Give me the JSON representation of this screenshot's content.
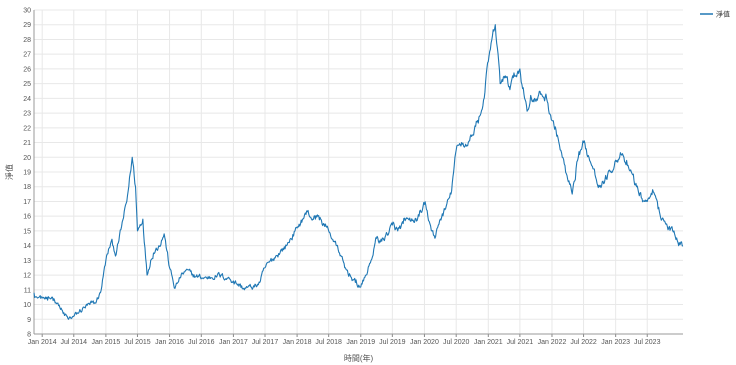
{
  "chart_data": {
    "type": "line",
    "xlabel": "時間(年)",
    "ylabel": "淨值",
    "ylim": [
      8,
      30
    ],
    "y_ticks": [
      8,
      9,
      10,
      11,
      12,
      13,
      14,
      15,
      16,
      17,
      18,
      19,
      20,
      21,
      22,
      23,
      24,
      25,
      26,
      27,
      28,
      29,
      30
    ],
    "xlim": [
      "2013-11-15",
      "2024-01-22"
    ],
    "x_ticks": [
      {
        "date": "2014-01-01",
        "label": "Jan 2014"
      },
      {
        "date": "2014-07-01",
        "label": "Jul 2014"
      },
      {
        "date": "2015-01-01",
        "label": "Jan 2015"
      },
      {
        "date": "2015-07-01",
        "label": "Jul 2015"
      },
      {
        "date": "2016-01-01",
        "label": "Jan 2016"
      },
      {
        "date": "2016-07-01",
        "label": "Jul 2016"
      },
      {
        "date": "2017-01-01",
        "label": "Jan 2017"
      },
      {
        "date": "2017-07-01",
        "label": "Jul 2017"
      },
      {
        "date": "2018-01-01",
        "label": "Jan 2018"
      },
      {
        "date": "2018-07-01",
        "label": "Jul 2018"
      },
      {
        "date": "2019-01-01",
        "label": "Jan 2019"
      },
      {
        "date": "2019-07-01",
        "label": "Jul 2019"
      },
      {
        "date": "2020-01-01",
        "label": "Jan 2020"
      },
      {
        "date": "2020-07-01",
        "label": "Jul 2020"
      },
      {
        "date": "2021-01-01",
        "label": "Jan 2021"
      },
      {
        "date": "2021-07-01",
        "label": "Jul 2021"
      },
      {
        "date": "2022-01-01",
        "label": "Jan 2022"
      },
      {
        "date": "2022-07-01",
        "label": "Jul 2022"
      },
      {
        "date": "2023-01-01",
        "label": "Jan 2023"
      },
      {
        "date": "2023-07-01",
        "label": "Jul 2023"
      }
    ],
    "grid": true,
    "legend_position": "top-right",
    "series": [
      {
        "name": "淨值",
        "color": "#1f77b4",
        "points": [
          [
            "2013-11-15",
            10.8
          ],
          [
            "2013-12-01",
            10.5
          ],
          [
            "2014-01-01",
            10.5
          ],
          [
            "2014-02-01",
            10.3
          ],
          [
            "2014-03-01",
            10.5
          ],
          [
            "2014-04-01",
            10.1
          ],
          [
            "2014-05-01",
            9.4
          ],
          [
            "2014-06-01",
            9.0
          ],
          [
            "2014-07-01",
            9.2
          ],
          [
            "2014-08-01",
            9.5
          ],
          [
            "2014-09-01",
            9.8
          ],
          [
            "2014-10-01",
            10.0
          ],
          [
            "2014-11-01",
            10.1
          ],
          [
            "2014-12-01",
            10.8
          ],
          [
            "2015-01-01",
            13.0
          ],
          [
            "2015-02-01",
            14.3
          ],
          [
            "2015-03-01",
            13.4
          ],
          [
            "2015-04-01",
            15.3
          ],
          [
            "2015-05-01",
            17.0
          ],
          [
            "2015-06-01",
            20.0
          ],
          [
            "2015-06-20",
            18.0
          ],
          [
            "2015-07-01",
            15.0
          ],
          [
            "2015-08-01",
            15.8
          ],
          [
            "2015-08-25",
            12.0
          ],
          [
            "2015-09-15",
            13.0
          ],
          [
            "2015-10-01",
            13.5
          ],
          [
            "2015-11-01",
            14.0
          ],
          [
            "2015-12-01",
            14.8
          ],
          [
            "2016-01-01",
            12.5
          ],
          [
            "2016-02-01",
            11.1
          ],
          [
            "2016-03-01",
            11.8
          ],
          [
            "2016-04-01",
            12.3
          ],
          [
            "2016-06-01",
            11.9
          ],
          [
            "2016-08-01",
            11.8
          ],
          [
            "2016-10-01",
            12.0
          ],
          [
            "2016-12-01",
            11.8
          ],
          [
            "2017-01-01",
            11.6
          ],
          [
            "2017-03-01",
            11.1
          ],
          [
            "2017-05-01",
            11.2
          ],
          [
            "2017-06-01",
            11.5
          ],
          [
            "2017-07-01",
            12.5
          ],
          [
            "2017-09-01",
            13.3
          ],
          [
            "2017-11-01",
            14.0
          ],
          [
            "2018-01-01",
            15.2
          ],
          [
            "2018-02-01",
            15.8
          ],
          [
            "2018-03-01",
            16.3
          ],
          [
            "2018-04-01",
            15.8
          ],
          [
            "2018-05-01",
            16.0
          ],
          [
            "2018-06-01",
            15.5
          ],
          [
            "2018-07-01",
            15.0
          ],
          [
            "2018-08-01",
            14.3
          ],
          [
            "2018-09-01",
            13.5
          ],
          [
            "2018-10-01",
            12.5
          ],
          [
            "2018-11-01",
            12.0
          ],
          [
            "2018-12-01",
            11.5
          ],
          [
            "2019-01-01",
            11.2
          ],
          [
            "2019-02-01",
            12.0
          ],
          [
            "2019-03-01",
            13.0
          ],
          [
            "2019-04-01",
            14.5
          ],
          [
            "2019-05-01",
            14.3
          ],
          [
            "2019-06-01",
            14.8
          ],
          [
            "2019-07-01",
            15.4
          ],
          [
            "2019-08-01",
            15.0
          ],
          [
            "2019-09-01",
            15.5
          ],
          [
            "2019-10-01",
            15.8
          ],
          [
            "2019-11-01",
            15.6
          ],
          [
            "2019-12-01",
            16.0
          ],
          [
            "2020-01-01",
            16.8
          ],
          [
            "2020-02-01",
            15.5
          ],
          [
            "2020-03-01",
            14.5
          ],
          [
            "2020-04-01",
            15.8
          ],
          [
            "2020-05-01",
            16.5
          ],
          [
            "2020-06-01",
            17.5
          ],
          [
            "2020-07-01",
            20.5
          ],
          [
            "2020-08-01",
            21.0
          ],
          [
            "2020-09-01",
            20.8
          ],
          [
            "2020-10-01",
            21.5
          ],
          [
            "2020-11-01",
            22.5
          ],
          [
            "2020-12-01",
            23.5
          ],
          [
            "2021-01-01",
            26.5
          ],
          [
            "2021-02-10",
            29.0
          ],
          [
            "2021-03-10",
            25.0
          ],
          [
            "2021-04-01",
            25.5
          ],
          [
            "2021-05-01",
            24.8
          ],
          [
            "2021-06-01",
            25.5
          ],
          [
            "2021-07-01",
            26.0
          ],
          [
            "2021-07-28",
            24.0
          ],
          [
            "2021-08-15",
            23.2
          ],
          [
            "2021-09-01",
            24.2
          ],
          [
            "2021-10-01",
            23.8
          ],
          [
            "2021-11-01",
            24.3
          ],
          [
            "2021-12-01",
            24.0
          ],
          [
            "2022-01-01",
            22.5
          ],
          [
            "2022-02-01",
            21.5
          ],
          [
            "2022-03-01",
            20.0
          ],
          [
            "2022-04-01",
            18.5
          ],
          [
            "2022-04-27",
            17.5
          ],
          [
            "2022-05-15",
            18.5
          ],
          [
            "2022-06-01",
            20.0
          ],
          [
            "2022-07-01",
            21.0
          ],
          [
            "2022-08-01",
            20.0
          ],
          [
            "2022-09-01",
            19.2
          ],
          [
            "2022-10-01",
            18.0
          ],
          [
            "2022-11-01",
            18.5
          ],
          [
            "2022-12-01",
            19.0
          ],
          [
            "2023-01-01",
            19.8
          ],
          [
            "2023-02-01",
            20.2
          ],
          [
            "2023-03-01",
            19.5
          ],
          [
            "2023-04-01",
            19.0
          ],
          [
            "2023-05-01",
            18.0
          ],
          [
            "2023-06-01",
            17.2
          ],
          [
            "2023-07-01",
            17.0
          ],
          [
            "2023-08-01",
            17.8
          ],
          [
            "2023-09-01",
            16.5
          ],
          [
            "2023-10-01",
            15.8
          ],
          [
            "2023-11-01",
            15.2
          ],
          [
            "2023-12-01",
            15.0
          ],
          [
            "2024-01-01",
            14.2
          ],
          [
            "2024-01-22",
            14.0
          ]
        ]
      }
    ]
  }
}
